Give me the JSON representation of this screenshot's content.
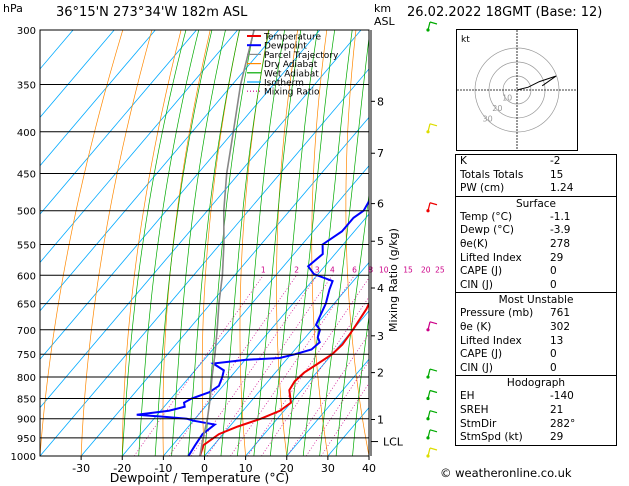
{
  "header": {
    "hpa": "hPa",
    "location": "36°15'N  273°34'W  182m  ASL",
    "km": "km",
    "asl": "ASL",
    "datetime": "26.02.2022  18GMT  (Base: 12)"
  },
  "chart_data": {
    "type": "line",
    "title": "",
    "xlabel": "Dewpoint / Temperature (°C)",
    "ylabel": "hPa",
    "y_scale": "log",
    "ylim": [
      1000,
      300
    ],
    "xlim": [
      -40,
      40
    ],
    "x_ticks": [
      "-30",
      "-20",
      "-10",
      "0",
      "10",
      "20",
      "30",
      "40"
    ],
    "pressure_levels": [
      "300",
      "350",
      "400",
      "450",
      "500",
      "550",
      "600",
      "650",
      "700",
      "750",
      "800",
      "850",
      "900",
      "950",
      "1000"
    ],
    "km_ticks": [
      {
        "p": 367,
        "label": "8"
      },
      {
        "p": 425,
        "label": "7"
      },
      {
        "p": 490,
        "label": "6"
      },
      {
        "p": 545,
        "label": "5"
      },
      {
        "p": 622,
        "label": "4"
      },
      {
        "p": 712,
        "label": "3"
      },
      {
        "p": 790,
        "label": "2"
      },
      {
        "p": 902,
        "label": "1"
      }
    ],
    "lcl_label": "LCL",
    "lcl_pressure": 960,
    "mixing_ratio_axis_label": "Mixing Ratio (g/kg)",
    "mixing_ratio_labels": [
      "1",
      "2",
      "3",
      "4",
      "6",
      "8",
      "10",
      "15",
      "20",
      "25"
    ],
    "legend": [
      {
        "name": "Temperature",
        "color": "#ee0000"
      },
      {
        "name": "Dewpoint",
        "color": "#0000ff"
      },
      {
        "name": "Parcel Trajectory",
        "color": "#888888"
      },
      {
        "name": "Dry Adiabat",
        "color": "#ff8800"
      },
      {
        "name": "Wet Adiabat",
        "color": "#00aa00"
      },
      {
        "name": "Isotherm",
        "color": "#00aaff"
      },
      {
        "name": "Mixing Ratio",
        "color": "#cc0088"
      }
    ],
    "legend_position": "top-right",
    "series": [
      {
        "name": "Temperature",
        "color": "#ee0000",
        "points": [
          [
            1000,
            -1.1
          ],
          [
            970,
            -2.5
          ],
          [
            940,
            -1
          ],
          [
            920,
            2
          ],
          [
            900,
            6
          ],
          [
            880,
            9
          ],
          [
            860,
            10
          ],
          [
            850,
            9
          ],
          [
            830,
            7
          ],
          [
            810,
            6.5
          ],
          [
            790,
            7
          ],
          [
            770,
            8.5
          ],
          [
            750,
            10
          ],
          [
            730,
            10.5
          ],
          [
            700,
            10
          ],
          [
            680,
            9.5
          ],
          [
            660,
            9
          ],
          [
            640,
            8
          ],
          [
            620,
            7.5
          ],
          [
            600,
            6.5
          ],
          [
            560,
            3
          ],
          [
            530,
            0
          ],
          [
            500,
            -3
          ],
          [
            470,
            -6
          ],
          [
            450,
            -8
          ],
          [
            420,
            -11
          ],
          [
            400,
            -12.5
          ],
          [
            385,
            -15
          ],
          [
            370,
            -17
          ],
          [
            350,
            -20
          ],
          [
            335,
            -22
          ],
          [
            320,
            -25
          ],
          [
            300,
            -28
          ]
        ]
      },
      {
        "name": "Dewpoint",
        "color": "#0000ff",
        "points": [
          [
            1000,
            -3.9
          ],
          [
            970,
            -4.5
          ],
          [
            940,
            -5
          ],
          [
            915,
            -4
          ],
          [
            905,
            -10
          ],
          [
            900,
            -12
          ],
          [
            895,
            -18
          ],
          [
            890,
            -25
          ],
          [
            880,
            -18
          ],
          [
            870,
            -15
          ],
          [
            860,
            -16
          ],
          [
            850,
            -15
          ],
          [
            835,
            -12
          ],
          [
            820,
            -11
          ],
          [
            800,
            -12
          ],
          [
            785,
            -13
          ],
          [
            770,
            -17
          ],
          [
            762,
            -10
          ],
          [
            758,
            -2
          ],
          [
            750,
            1
          ],
          [
            740,
            4
          ],
          [
            725,
            4.5
          ],
          [
            715,
            3
          ],
          [
            700,
            2
          ],
          [
            690,
            0
          ],
          [
            670,
            -1
          ],
          [
            650,
            -2
          ],
          [
            625,
            -4
          ],
          [
            610,
            -5
          ],
          [
            598,
            -11
          ],
          [
            585,
            -14
          ],
          [
            565,
            -13
          ],
          [
            550,
            -15
          ],
          [
            530,
            -13
          ],
          [
            510,
            -13
          ],
          [
            500,
            -12
          ],
          [
            480,
            -13
          ],
          [
            460,
            -15
          ],
          [
            445,
            -16
          ],
          [
            430,
            -18
          ],
          [
            420,
            -20
          ],
          [
            410,
            -22
          ],
          [
            400,
            -23
          ],
          [
            395,
            -19
          ],
          [
            390,
            -18
          ],
          [
            380,
            -22
          ],
          [
            370,
            -23
          ],
          [
            360,
            -24
          ],
          [
            350,
            -25
          ],
          [
            340,
            -26
          ],
          [
            330,
            -28
          ],
          [
            320,
            -30
          ],
          [
            305,
            -31
          ],
          [
            300,
            -32
          ]
        ]
      },
      {
        "name": "Parcel Trajectory",
        "color": "#888888",
        "points": [
          [
            1000,
            -1.1
          ],
          [
            960,
            -3.5
          ],
          [
            900,
            -7
          ],
          [
            850,
            -10.5
          ],
          [
            800,
            -14.5
          ],
          [
            750,
            -18.5
          ],
          [
            700,
            -23
          ],
          [
            650,
            -28
          ],
          [
            600,
            -33
          ],
          [
            550,
            -39
          ],
          [
            500,
            -46
          ],
          [
            450,
            -53
          ],
          [
            400,
            -60
          ],
          [
            350,
            -68
          ],
          [
            300,
            -76
          ]
        ]
      }
    ],
    "wind_barbs": [
      {
        "p": 300,
        "color": "#00aa00"
      },
      {
        "p": 400,
        "color": "#dddd00"
      },
      {
        "p": 500,
        "color": "#ee0000"
      },
      {
        "p": 700,
        "color": "#cc0088"
      },
      {
        "p": 800,
        "color": "#00aa00"
      },
      {
        "p": 850,
        "color": "#00aa00"
      },
      {
        "p": 900,
        "color": "#00aa00"
      },
      {
        "p": 950,
        "color": "#00aa00"
      },
      {
        "p": 1000,
        "color": "#dddd00"
      }
    ]
  },
  "hodograph": {
    "label": "kt",
    "ring_labels": [
      "10",
      "20",
      "30"
    ],
    "points": [
      [
        0,
        0
      ],
      [
        8,
        -2
      ],
      [
        16,
        -6
      ],
      [
        28,
        -10
      ],
      [
        18,
        -3
      ]
    ]
  },
  "indices": {
    "top": [
      {
        "k": "K",
        "v": "-2"
      },
      {
        "k": "Totals Totals",
        "v": "15"
      },
      {
        "k": "PW (cm)",
        "v": "1.24"
      }
    ],
    "surface_title": "Surface",
    "surface": [
      {
        "k": "Temp (°C)",
        "v": "-1.1"
      },
      {
        "k": "Dewp (°C)",
        "v": "-3.9"
      },
      {
        "k": "θe(K)",
        "v": "278"
      },
      {
        "k": "Lifted Index",
        "v": "29"
      },
      {
        "k": "CAPE (J)",
        "v": "0"
      },
      {
        "k": "CIN (J)",
        "v": "0"
      }
    ],
    "unstable_title": "Most Unstable",
    "unstable": [
      {
        "k": "Pressure (mb)",
        "v": "761"
      },
      {
        "k": "θe (K)",
        "v": "302"
      },
      {
        "k": "Lifted Index",
        "v": "13"
      },
      {
        "k": "CAPE (J)",
        "v": "0"
      },
      {
        "k": "CIN (J)",
        "v": "0"
      }
    ],
    "hodograph_title": "Hodograph",
    "hodo": [
      {
        "k": "EH",
        "v": "-140"
      },
      {
        "k": "SREH",
        "v": "21"
      },
      {
        "k": "StmDir",
        "v": "282°"
      },
      {
        "k": "StmSpd (kt)",
        "v": "29"
      }
    ]
  },
  "copyright": "© weatheronline.co.uk"
}
